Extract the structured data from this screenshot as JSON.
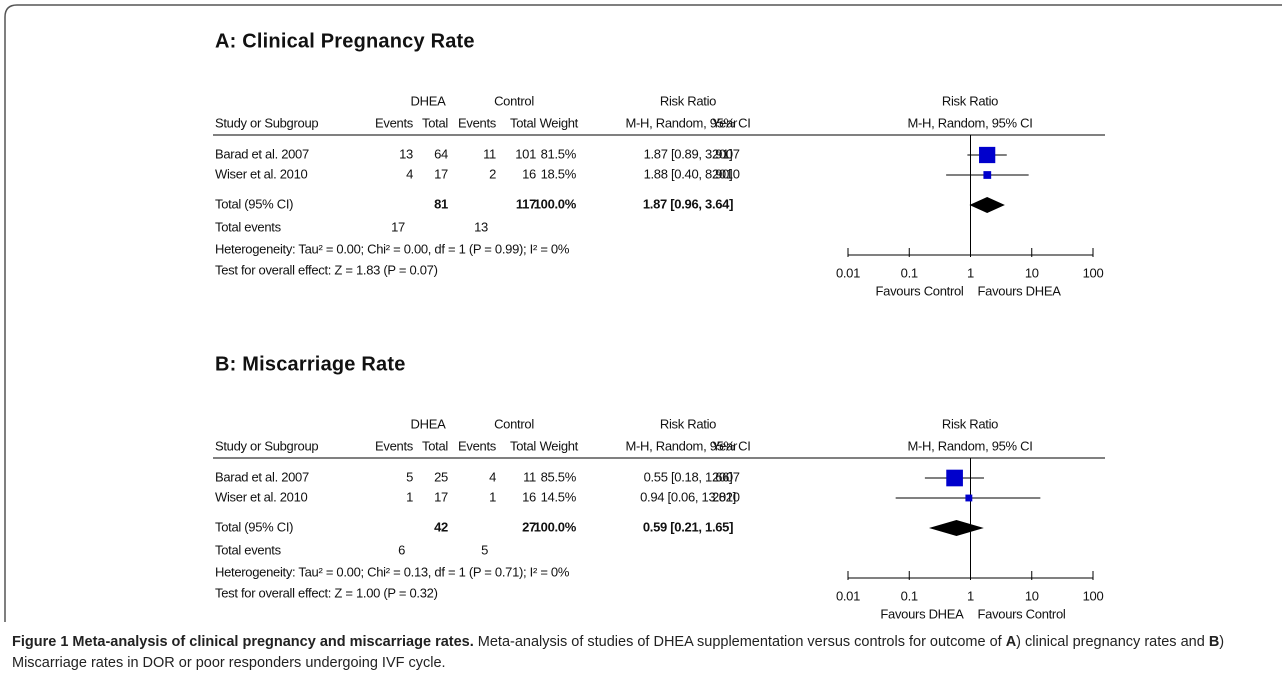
{
  "figure": {
    "panels": [
      {
        "title": "A: Clinical Pregnancy Rate",
        "header": {
          "group1": "DHEA",
          "group2": "Control",
          "effect": "Risk Ratio",
          "plot_title": "Risk Ratio",
          "columns": [
            "Study or Subgroup",
            "Events",
            "Total",
            "Events",
            "Total",
            "Weight",
            "M-H, Random, 95% CI",
            "Year"
          ],
          "plot_subtitle": "M-H, Random, 95% CI"
        },
        "studies": [
          {
            "name": "Barad et al. 2007",
            "dhea_events": "13",
            "dhea_total": "64",
            "control_events": "11",
            "control_total": "101",
            "weight": "81.5%",
            "ci": "1.87 [0.89, 3.91]",
            "year": "2007"
          },
          {
            "name": "Wiser et al. 2010",
            "dhea_events": "4",
            "dhea_total": "17",
            "control_events": "2",
            "control_total": "16",
            "weight": "18.5%",
            "ci": "1.88 [0.40, 8.90]",
            "year": "2010"
          }
        ],
        "total": {
          "name": "Total (95% CI)",
          "dhea_total": "81",
          "control_total": "117",
          "weight": "100.0%",
          "ci": "1.87 [0.96, 3.64]"
        },
        "total_events": {
          "name": "Total events",
          "dhea_events": "17",
          "control_events": "13"
        },
        "heterogeneity": "Heterogeneity: Tau² = 0.00; Chi² = 0.00, df = 1 (P = 0.99); I² = 0%",
        "overall_effect": "Test for overall effect: Z = 1.83 (P = 0.07)",
        "forest": {
          "type": "forest",
          "xscale": "log",
          "xlim": [
            0.01,
            100
          ],
          "xticks": [
            0.01,
            0.1,
            1,
            10,
            100
          ],
          "xlabel_left": "Favours Control",
          "xlabel_right": "Favours DHEA",
          "color": "#0000cc",
          "estimates": [
            1.87,
            1.88
          ],
          "lower": [
            0.89,
            0.4
          ],
          "upper": [
            3.91,
            8.9
          ],
          "weights": [
            81.5,
            18.5
          ],
          "pooled": {
            "estimate": 1.87,
            "lower": 0.96,
            "upper": 3.64
          }
        }
      },
      {
        "title": "B: Miscarriage Rate",
        "header": {
          "group1": "DHEA",
          "group2": "Control",
          "effect": "Risk Ratio",
          "plot_title": "Risk Ratio",
          "columns": [
            "Study or Subgroup",
            "Events",
            "Total",
            "Events",
            "Total",
            "Weight",
            "M-H, Random, 95% CI",
            "Year"
          ],
          "plot_subtitle": "M-H, Random, 95% CI"
        },
        "studies": [
          {
            "name": "Barad et al. 2007",
            "dhea_events": "5",
            "dhea_total": "25",
            "control_events": "4",
            "control_total": "11",
            "weight": "85.5%",
            "ci": "0.55 [0.18, 1.66]",
            "year": "2007"
          },
          {
            "name": "Wiser et al. 2010",
            "dhea_events": "1",
            "dhea_total": "17",
            "control_events": "1",
            "control_total": "16",
            "weight": "14.5%",
            "ci": "0.94 [0.06, 13.82]",
            "year": "2010"
          }
        ],
        "total": {
          "name": "Total (95% CI)",
          "dhea_total": "42",
          "control_total": "27",
          "weight": "100.0%",
          "ci": "0.59 [0.21, 1.65]"
        },
        "total_events": {
          "name": "Total events",
          "dhea_events": "6",
          "control_events": "5"
        },
        "heterogeneity": "Heterogeneity: Tau² = 0.00; Chi² = 0.13, df = 1 (P = 0.71); I² = 0%",
        "overall_effect": "Test for overall effect: Z = 1.00 (P = 0.32)",
        "forest": {
          "type": "forest",
          "xscale": "log",
          "xlim": [
            0.01,
            100
          ],
          "xticks": [
            0.01,
            0.1,
            1,
            10,
            100
          ],
          "xlabel_left": "Favours DHEA",
          "xlabel_right": "Favours Control",
          "color": "#0000cc",
          "estimates": [
            0.55,
            0.94
          ],
          "lower": [
            0.18,
            0.06
          ],
          "upper": [
            1.66,
            13.82
          ],
          "weights": [
            85.5,
            14.5
          ],
          "pooled": {
            "estimate": 0.59,
            "lower": 0.21,
            "upper": 1.65
          }
        }
      }
    ],
    "caption": {
      "label": "Figure 1 Meta-analysis of clinical pregnancy and miscarriage rates.",
      "text_1": " Meta-analysis of studies of DHEA supplementation versus controls for outcome of ",
      "a": "A",
      "text_2": ") clinical pregnancy rates and ",
      "b": "B",
      "text_3": ") Miscarriage rates in DOR or poor responders undergoing IVF cycle."
    }
  }
}
